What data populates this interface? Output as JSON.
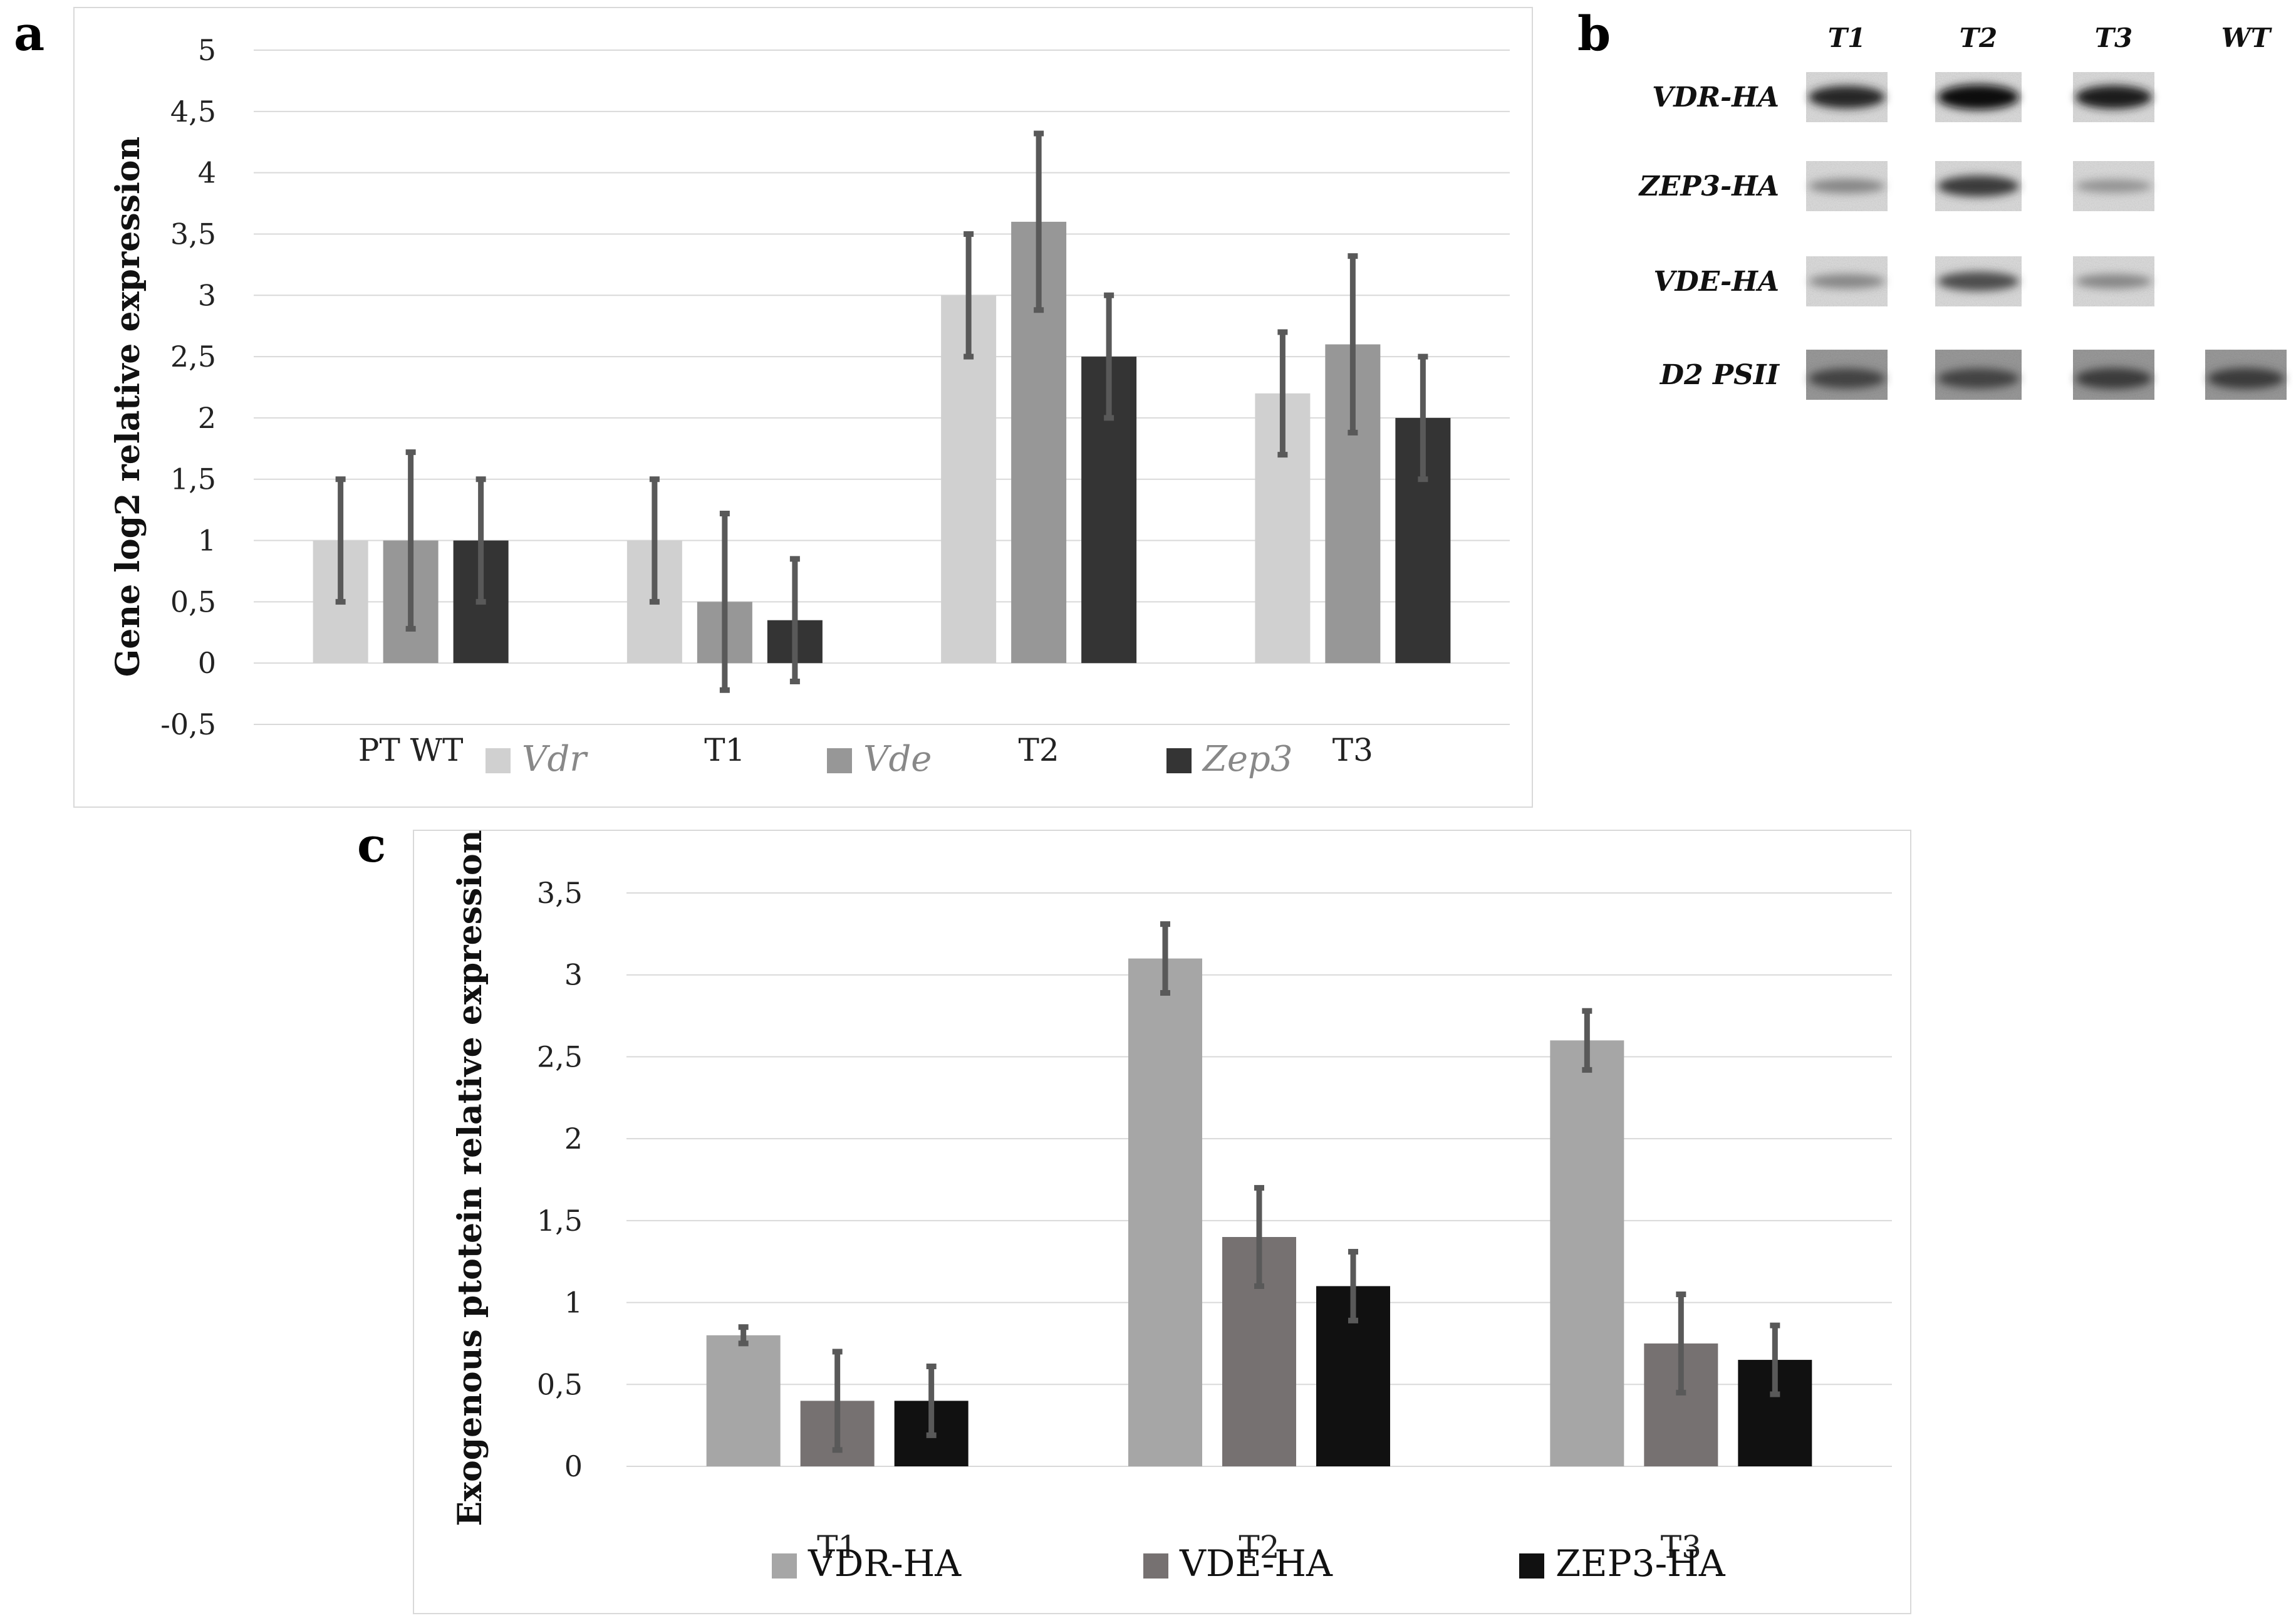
{
  "panels": {
    "a": "a",
    "b": "b",
    "c": "c"
  },
  "chart_data": [
    {
      "panel": "a",
      "type": "bar",
      "ylabel": "Gene log2 relative expression",
      "xlabel": "",
      "ylim": [
        -0.5,
        5
      ],
      "yticks": [
        -0.5,
        0,
        0.5,
        1,
        1.5,
        2,
        2.5,
        3,
        3.5,
        4,
        4.5,
        5
      ],
      "ytick_labels": [
        "-0,5",
        "0",
        "0,5",
        "1",
        "1,5",
        "2",
        "2,5",
        "3",
        "3,5",
        "4",
        "4,5",
        "5"
      ],
      "categories": [
        "PT WT",
        "T1",
        "T2",
        "T3"
      ],
      "legend_position": "bottom",
      "legend_italic": true,
      "grid": true,
      "series": [
        {
          "name": "Vdr",
          "color": "#d0d0d0",
          "values": [
            1,
            1,
            3,
            2.2
          ],
          "errors": [
            0.5,
            0.5,
            0.5,
            0.5
          ]
        },
        {
          "name": "Vde",
          "color": "#979797",
          "values": [
            1,
            0.5,
            3.6,
            2.6
          ],
          "errors": [
            0.72,
            0.72,
            0.72,
            0.72
          ]
        },
        {
          "name": "Zep3",
          "color": "#343434",
          "values": [
            1,
            0.35,
            2.5,
            2.0
          ],
          "errors": [
            0.5,
            0.5,
            0.5,
            0.5
          ]
        }
      ]
    },
    {
      "panel": "c",
      "type": "bar",
      "ylabel": "Exogenous ptotein relative expression",
      "xlabel": "",
      "ylim": [
        0,
        3.5
      ],
      "yticks": [
        0,
        0.5,
        1,
        1.5,
        2,
        2.5,
        3,
        3.5
      ],
      "ytick_labels": [
        "0",
        "0,5",
        "1",
        "1,5",
        "2",
        "2,5",
        "3",
        "3,5"
      ],
      "categories": [
        "T1",
        "T2",
        "T3"
      ],
      "legend_position": "bottom",
      "legend_italic": false,
      "grid": true,
      "series": [
        {
          "name": "VDR-HA",
          "color": "#a6a6a6",
          "values": [
            0.8,
            3.1,
            2.6
          ],
          "errors": [
            0.05,
            0.21,
            0.18
          ]
        },
        {
          "name": "VDE-HA",
          "color": "#767171",
          "values": [
            0.4,
            1.4,
            0.75
          ],
          "errors": [
            0.3,
            0.3,
            0.3
          ]
        },
        {
          "name": "ZEP3-HA",
          "color": "#111111",
          "values": [
            0.4,
            1.1,
            0.65
          ],
          "errors": [
            0.21,
            0.21,
            0.21
          ]
        }
      ]
    }
  ],
  "western_blot": {
    "columns": [
      "T1",
      "T2",
      "T3",
      "WT"
    ],
    "rows": [
      {
        "label": "VDR-HA",
        "intensity": [
          0.85,
          1.0,
          0.9,
          0
        ]
      },
      {
        "label": "ZEP3-HA",
        "intensity": [
          0.35,
          0.75,
          0.28,
          0
        ]
      },
      {
        "label": "VDE-HA",
        "intensity": [
          0.35,
          0.65,
          0.35,
          0
        ]
      },
      {
        "label": "D2 PSII",
        "intensity": [
          0.7,
          0.7,
          0.75,
          0.75
        ]
      }
    ]
  }
}
